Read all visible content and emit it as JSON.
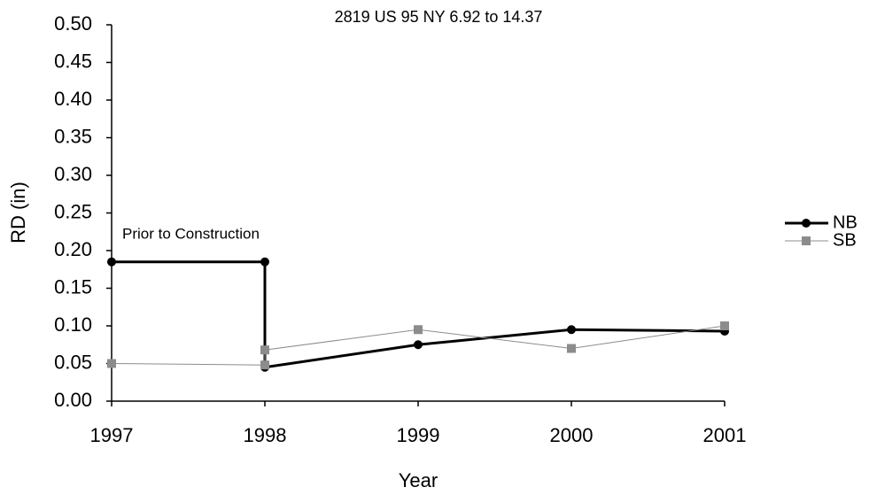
{
  "chart_data": {
    "type": "line",
    "title": "2819 US 95 NY 6.92 to 14.37",
    "x_label": "Year",
    "y_label": "RD (in)",
    "xlim": [
      1997,
      2001
    ],
    "xticks": [
      1997,
      1998,
      1999,
      2000,
      2001
    ],
    "ylim": [
      0,
      0.5
    ],
    "yticks": [
      {
        "value": 0,
        "label": "0.00"
      },
      {
        "value": 0.05,
        "label": "0.05"
      },
      {
        "value": 0.1,
        "label": "0.10"
      },
      {
        "value": 0.15,
        "label": "0.15"
      },
      {
        "value": 0.2,
        "label": "0.20"
      },
      {
        "value": 0.25,
        "label": "0.25"
      },
      {
        "value": 0.3,
        "label": "0.30"
      },
      {
        "value": 0.35,
        "label": "0.35"
      },
      {
        "value": 0.4,
        "label": "0.40"
      },
      {
        "value": 0.45,
        "label": "0.45"
      },
      {
        "value": 0.5,
        "label": "0.50"
      }
    ],
    "annotations": [
      "Prior to Construction"
    ],
    "legend": "right",
    "series": [
      {
        "name": "NB",
        "color": "#000000",
        "marker": "circle",
        "line_width": 3,
        "x": [
          1997,
          1998,
          1998,
          1999,
          2000,
          2001
        ],
        "values": [
          0.185,
          0.185,
          0.045,
          0.075,
          0.095,
          0.093
        ]
      },
      {
        "name": "SB",
        "color": "#8c8c8c",
        "marker": "square",
        "line_width": 1,
        "x": [
          1997,
          1998,
          1998,
          1999,
          2000,
          2001
        ],
        "values": [
          0.05,
          0.048,
          0.068,
          0.095,
          0.07,
          0.1
        ]
      }
    ]
  }
}
